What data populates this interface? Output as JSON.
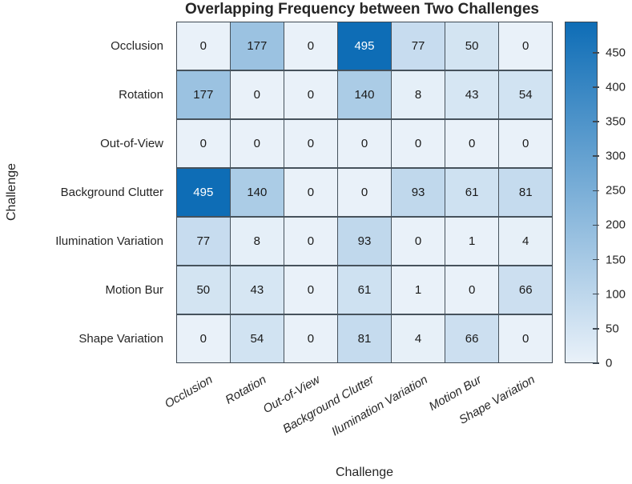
{
  "chart_data": {
    "type": "heatmap",
    "title": "Overlapping Frequency between Two Challenges",
    "xlabel": "Challenge",
    "ylabel": "Challenge",
    "categories": [
      "Occlusion",
      "Rotation",
      "Out-of-View",
      "Background Clutter",
      "Ilumination Variation",
      "Motion Bur",
      "Shape Variation"
    ],
    "matrix": [
      [
        0,
        177,
        0,
        495,
        77,
        50,
        0
      ],
      [
        177,
        0,
        0,
        140,
        8,
        43,
        54
      ],
      [
        0,
        0,
        0,
        0,
        0,
        0,
        0
      ],
      [
        495,
        140,
        0,
        0,
        93,
        61,
        81
      ],
      [
        77,
        8,
        0,
        93,
        0,
        1,
        4
      ],
      [
        50,
        43,
        0,
        61,
        1,
        0,
        66
      ],
      [
        0,
        54,
        0,
        81,
        4,
        66,
        0
      ]
    ],
    "colorbar": {
      "min": 0,
      "max": 495,
      "ticks": [
        0,
        50,
        100,
        150,
        200,
        250,
        300,
        350,
        400,
        450
      ],
      "color_min": "#e9f1f9",
      "color_max": "#0e6db6"
    },
    "x_tick_rotation_deg": 30,
    "x_tick_style": "italic",
    "value_text_color": "#1a1a1a",
    "value_text_color_dark_cell": "#ffffff",
    "gridline_color": "#46525c"
  }
}
